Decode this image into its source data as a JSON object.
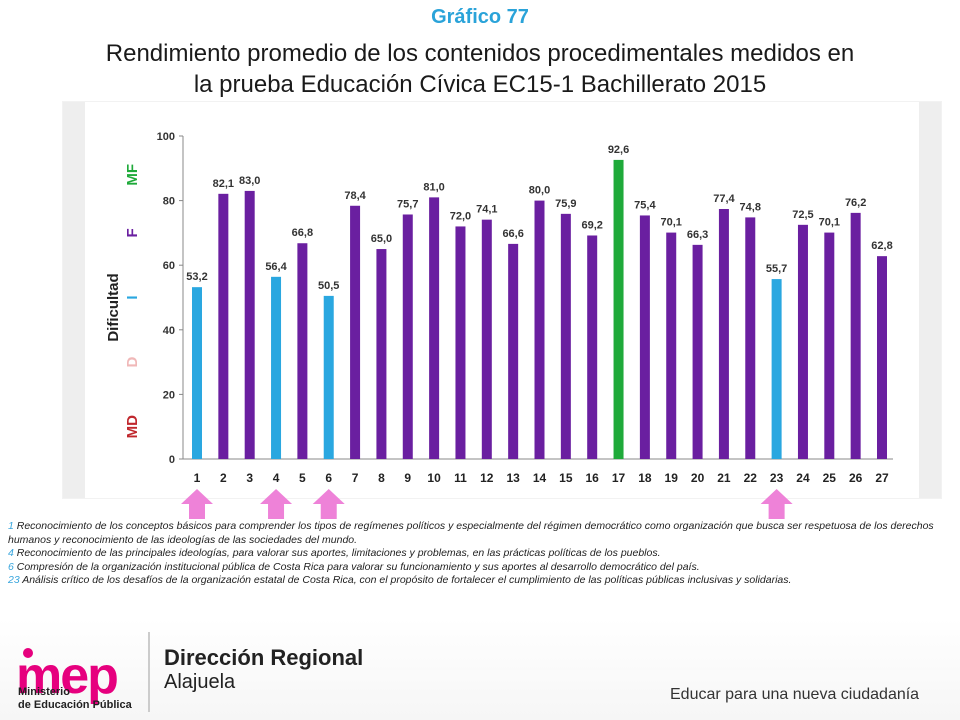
{
  "header": {
    "kicker": "Gráfico 77",
    "title_line1": "Rendimiento promedio de los contenidos procedimentales medidos en",
    "title_line2": "la prueba Educación Cívica EC15-1 Bachillerato 2015"
  },
  "chart_data": {
    "type": "bar",
    "categories": [
      "1",
      "2",
      "3",
      "4",
      "5",
      "6",
      "7",
      "8",
      "9",
      "10",
      "11",
      "12",
      "13",
      "14",
      "15",
      "16",
      "17",
      "18",
      "19",
      "20",
      "21",
      "22",
      "23",
      "24",
      "25",
      "26",
      "27"
    ],
    "values": [
      53.2,
      82.1,
      83.0,
      56.4,
      66.8,
      50.5,
      78.4,
      65.0,
      75.7,
      81.0,
      72.0,
      74.1,
      66.6,
      80.0,
      75.9,
      69.2,
      92.6,
      75.4,
      70.1,
      66.3,
      77.4,
      74.8,
      55.7,
      72.5,
      70.1,
      76.2,
      62.8
    ],
    "value_labels": [
      "53,2",
      "82,1",
      "83,0",
      "56,4",
      "66,8",
      "50,5",
      "78,4",
      "65,0",
      "75,7",
      "81,0",
      "72,0",
      "74,1",
      "66,6",
      "80,0",
      "75,9",
      "69,2",
      "92,6",
      "75,4",
      "70,1",
      "66,3",
      "77,4",
      "74,8",
      "55,7",
      "72,5",
      "70,1",
      "76,2",
      "62,8"
    ],
    "bar_categories": [
      "I",
      "F",
      "F",
      "I",
      "F",
      "I",
      "F",
      "F",
      "F",
      "F",
      "F",
      "F",
      "F",
      "F",
      "F",
      "F",
      "MF",
      "F",
      "F",
      "F",
      "F",
      "F",
      "I",
      "F",
      "F",
      "F",
      "F"
    ],
    "ylim": [
      0,
      100
    ],
    "yticks": [
      "0",
      "20",
      "40",
      "60",
      "80",
      "100"
    ],
    "ylabel": "Dificultad",
    "difficulty_bands": [
      {
        "label": "MD",
        "color": "#c0272d"
      },
      {
        "label": "D",
        "color": "#f0b8b8"
      },
      {
        "label": "I",
        "color": "#2aa7e0"
      },
      {
        "label": "F",
        "color": "#6a1fa0"
      },
      {
        "label": "MF",
        "color": "#1faa3a"
      }
    ],
    "colors": {
      "I": "#2aa7e0",
      "F": "#6a1fa0",
      "MF": "#1faa3a"
    },
    "grid": false,
    "highlighted_items": [
      "1",
      "4",
      "6",
      "23"
    ]
  },
  "notes": [
    {
      "num": "1",
      "text": " Reconocimiento de los conceptos básicos para comprender los tipos de regímenes políticos y especialmente del régimen democrático como organización que busca ser respetuosa de los derechos humanos y reconocimiento de las ideologías de las sociedades del mundo."
    },
    {
      "num": "4",
      "text": " Reconocimiento de las principales ideologías, para valorar sus aportes, limitaciones y problemas, en las prácticas políticas de los pueblos."
    },
    {
      "num": "6",
      "text": " Compresión de la organización institucional pública de Costa Rica para valorar su funcionamiento y sus aportes al desarrollo democrático del país."
    },
    {
      "num": "23",
      "text": " Análisis crítico de los desafíos de la organización estatal de Costa Rica, con el propósito de fortalecer el cumplimiento de las políticas públicas inclusivas y solidarias."
    }
  ],
  "footer": {
    "logo_word": "mep",
    "logo_sub1": "Ministerio",
    "logo_sub2": "de Educación Pública",
    "region_line1": "Dirección Regional",
    "region_line2": "Alajuela",
    "tagline": "Educar para una nueva ciudadanía",
    "accent_color": "#e6007e",
    "arrow_color": "#ee82d8"
  }
}
